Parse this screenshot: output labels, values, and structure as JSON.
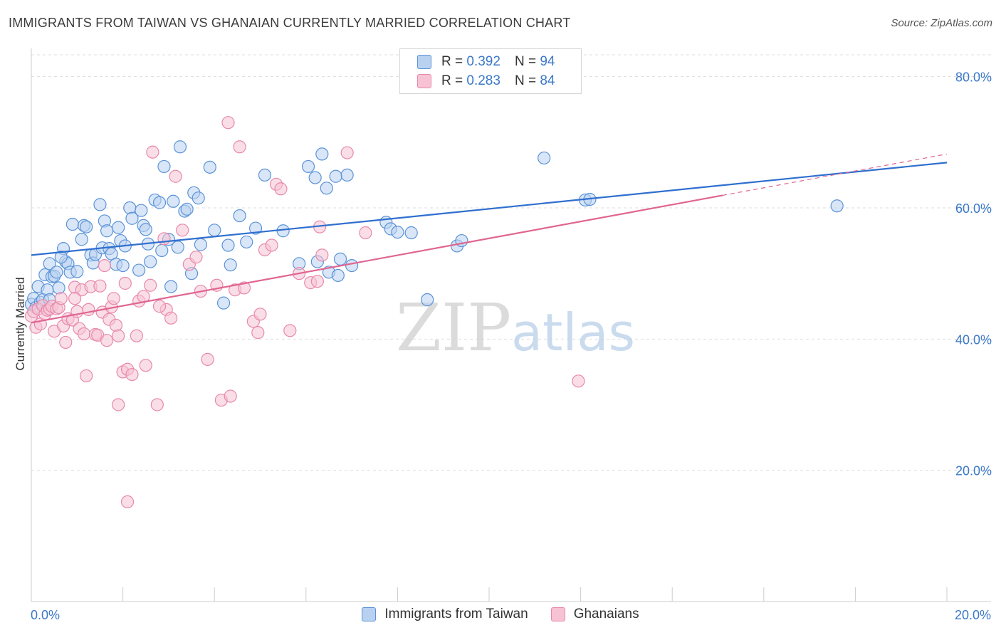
{
  "title": "IMMIGRANTS FROM TAIWAN VS GHANAIAN CURRENTLY MARRIED CORRELATION CHART",
  "source": "Source: ZipAtlas.com",
  "watermark": {
    "zip": "ZIP",
    "atlas": "atlas"
  },
  "colors": {
    "blue": "#5b93d8",
    "blue_fill": "#b9d1f1",
    "blue_line": "#2f6fcf",
    "pink": "#e889ab",
    "pink_fill": "#f6c2d4",
    "pink_line": "#e06591",
    "axis_text": "#3a78c9",
    "grid": "#dddddd"
  },
  "legend": {
    "rows": [
      {
        "r_label": "R =",
        "r": "0.392",
        "n_label": "N =",
        "n": "94",
        "series": "blue"
      },
      {
        "r_label": "R =",
        "r": "0.283",
        "n_label": "N =",
        "n": "84",
        "series": "pink"
      }
    ],
    "bottom": [
      "Immigrants from Taiwan",
      "Ghanaians"
    ]
  },
  "chart_data": {
    "type": "scatter",
    "xlabel": "",
    "ylabel": "Currently Married",
    "xlim": [
      0,
      20
    ],
    "ylim": [
      0,
      83
    ],
    "x_ticks": [
      {
        "v": 0,
        "label": "0.0%"
      },
      {
        "v": 20,
        "label": "20.0%"
      }
    ],
    "y_ticks": [
      {
        "v": 20,
        "label": "20.0%"
      },
      {
        "v": 40,
        "label": "40.0%"
      },
      {
        "v": 60,
        "label": "60.0%"
      },
      {
        "v": 80,
        "label": "80.0%"
      }
    ],
    "grid": true,
    "legend_position": "top-center",
    "series": [
      {
        "name": "Immigrants from Taiwan",
        "color": "blue",
        "r": 0.392,
        "n": 94,
        "trend": {
          "x": [
            0,
            20
          ],
          "y": [
            52.8,
            66.9
          ],
          "dashed_from": null
        },
        "points": [
          [
            0.0,
            45.3
          ],
          [
            0.05,
            46.2
          ],
          [
            0.1,
            44.8
          ],
          [
            0.15,
            48.0
          ],
          [
            0.2,
            45.6
          ],
          [
            0.25,
            46.0
          ],
          [
            0.3,
            49.8
          ],
          [
            0.35,
            47.5
          ],
          [
            0.4,
            51.5
          ],
          [
            0.45,
            49.5
          ],
          [
            0.5,
            49.6
          ],
          [
            0.55,
            50.2
          ],
          [
            0.6,
            47.8
          ],
          [
            0.7,
            53.8
          ],
          [
            0.75,
            51.8
          ],
          [
            0.8,
            51.5
          ],
          [
            0.85,
            50.2
          ],
          [
            0.9,
            57.5
          ],
          [
            1.0,
            50.3
          ],
          [
            1.1,
            55.2
          ],
          [
            1.15,
            57.3
          ],
          [
            1.2,
            57.1
          ],
          [
            1.3,
            52.8
          ],
          [
            1.35,
            51.6
          ],
          [
            1.4,
            52.9
          ],
          [
            1.5,
            60.5
          ],
          [
            1.55,
            53.9
          ],
          [
            1.6,
            58.0
          ],
          [
            1.65,
            56.5
          ],
          [
            1.7,
            53.8
          ],
          [
            1.75,
            53.0
          ],
          [
            1.85,
            51.4
          ],
          [
            1.9,
            57.0
          ],
          [
            1.95,
            55.0
          ],
          [
            2.0,
            51.2
          ],
          [
            2.05,
            54.2
          ],
          [
            2.15,
            60.0
          ],
          [
            2.2,
            58.4
          ],
          [
            2.35,
            50.5
          ],
          [
            2.4,
            59.6
          ],
          [
            2.45,
            57.3
          ],
          [
            2.5,
            56.7
          ],
          [
            2.55,
            54.5
          ],
          [
            2.6,
            51.8
          ],
          [
            2.7,
            61.2
          ],
          [
            2.8,
            60.8
          ],
          [
            2.85,
            53.5
          ],
          [
            2.9,
            66.3
          ],
          [
            3.0,
            55.2
          ],
          [
            3.05,
            48.0
          ],
          [
            3.1,
            61.0
          ],
          [
            3.2,
            54.0
          ],
          [
            3.25,
            69.3
          ],
          [
            3.35,
            59.5
          ],
          [
            3.4,
            59.8
          ],
          [
            3.5,
            50.0
          ],
          [
            3.55,
            62.3
          ],
          [
            3.65,
            61.5
          ],
          [
            3.7,
            54.4
          ],
          [
            3.9,
            66.2
          ],
          [
            4.0,
            56.6
          ],
          [
            4.2,
            45.5
          ],
          [
            4.3,
            54.3
          ],
          [
            4.35,
            51.3
          ],
          [
            4.55,
            58.8
          ],
          [
            4.7,
            54.8
          ],
          [
            4.9,
            56.9
          ],
          [
            5.1,
            65.0
          ],
          [
            5.5,
            56.5
          ],
          [
            5.85,
            51.5
          ],
          [
            6.05,
            66.3
          ],
          [
            6.2,
            64.6
          ],
          [
            6.25,
            51.8
          ],
          [
            6.35,
            68.2
          ],
          [
            6.45,
            63.0
          ],
          [
            6.5,
            50.2
          ],
          [
            6.65,
            64.8
          ],
          [
            6.7,
            49.7
          ],
          [
            6.75,
            52.2
          ],
          [
            6.9,
            65.0
          ],
          [
            7.0,
            51.2
          ],
          [
            7.75,
            57.8
          ],
          [
            7.85,
            56.8
          ],
          [
            8.0,
            56.3
          ],
          [
            8.3,
            56.2
          ],
          [
            8.65,
            46.0
          ],
          [
            9.3,
            54.2
          ],
          [
            9.4,
            55.0
          ],
          [
            11.2,
            67.6
          ],
          [
            12.1,
            61.2
          ],
          [
            12.2,
            61.3
          ],
          [
            17.6,
            60.3
          ],
          [
            0.4,
            46.0
          ],
          [
            0.65,
            52.5
          ]
        ]
      },
      {
        "name": "Ghanaians",
        "color": "pink",
        "r": 0.283,
        "n": 84,
        "trend": {
          "x": [
            0,
            20
          ],
          "y": [
            42.5,
            68.2
          ],
          "dashed_from": 15.1
        },
        "points": [
          [
            0.0,
            43.5
          ],
          [
            0.05,
            44.2
          ],
          [
            0.1,
            41.8
          ],
          [
            0.15,
            44.6
          ],
          [
            0.2,
            42.3
          ],
          [
            0.25,
            45.1
          ],
          [
            0.3,
            43.8
          ],
          [
            0.35,
            44.4
          ],
          [
            0.4,
            44.6
          ],
          [
            0.45,
            45.0
          ],
          [
            0.5,
            41.2
          ],
          [
            0.55,
            44.6
          ],
          [
            0.6,
            44.8
          ],
          [
            0.65,
            46.2
          ],
          [
            0.7,
            42.0
          ],
          [
            0.75,
            39.5
          ],
          [
            0.8,
            43.1
          ],
          [
            0.9,
            42.9
          ],
          [
            0.95,
            47.9
          ],
          [
            1.0,
            44.2
          ],
          [
            1.05,
            41.6
          ],
          [
            1.1,
            47.5
          ],
          [
            1.15,
            40.8
          ],
          [
            1.2,
            34.4
          ],
          [
            1.25,
            44.5
          ],
          [
            1.3,
            48.0
          ],
          [
            1.4,
            40.7
          ],
          [
            1.45,
            40.6
          ],
          [
            1.5,
            48.1
          ],
          [
            1.55,
            44.1
          ],
          [
            1.6,
            51.2
          ],
          [
            1.65,
            39.8
          ],
          [
            1.7,
            43.0
          ],
          [
            1.75,
            44.9
          ],
          [
            1.8,
            46.2
          ],
          [
            1.85,
            42.1
          ],
          [
            1.9,
            30.0
          ],
          [
            2.0,
            35.0
          ],
          [
            2.05,
            48.5
          ],
          [
            2.1,
            35.4
          ],
          [
            2.2,
            34.6
          ],
          [
            2.3,
            40.5
          ],
          [
            2.35,
            45.8
          ],
          [
            2.45,
            46.5
          ],
          [
            2.5,
            36.0
          ],
          [
            2.6,
            48.2
          ],
          [
            2.65,
            68.5
          ],
          [
            2.75,
            30.0
          ],
          [
            2.9,
            55.3
          ],
          [
            2.95,
            44.5
          ],
          [
            3.05,
            43.2
          ],
          [
            3.15,
            64.8
          ],
          [
            3.3,
            56.6
          ],
          [
            3.45,
            51.4
          ],
          [
            3.6,
            52.5
          ],
          [
            3.7,
            47.3
          ],
          [
            3.85,
            36.9
          ],
          [
            4.05,
            48.2
          ],
          [
            4.15,
            30.7
          ],
          [
            4.35,
            31.3
          ],
          [
            4.45,
            47.5
          ],
          [
            4.55,
            69.3
          ],
          [
            4.65,
            47.8
          ],
          [
            4.85,
            42.7
          ],
          [
            4.95,
            41.0
          ],
          [
            5.0,
            43.8
          ],
          [
            5.1,
            53.6
          ],
          [
            5.25,
            54.3
          ],
          [
            5.35,
            63.6
          ],
          [
            5.45,
            62.9
          ],
          [
            5.65,
            41.3
          ],
          [
            5.85,
            50.0
          ],
          [
            6.1,
            48.6
          ],
          [
            6.25,
            48.8
          ],
          [
            6.3,
            57.1
          ],
          [
            6.35,
            52.8
          ],
          [
            6.9,
            68.4
          ],
          [
            7.3,
            56.2
          ],
          [
            11.95,
            33.6
          ],
          [
            2.1,
            15.2
          ],
          [
            4.3,
            73.0
          ],
          [
            1.9,
            40.5
          ],
          [
            0.95,
            46.2
          ],
          [
            2.8,
            45.0
          ]
        ]
      }
    ]
  }
}
